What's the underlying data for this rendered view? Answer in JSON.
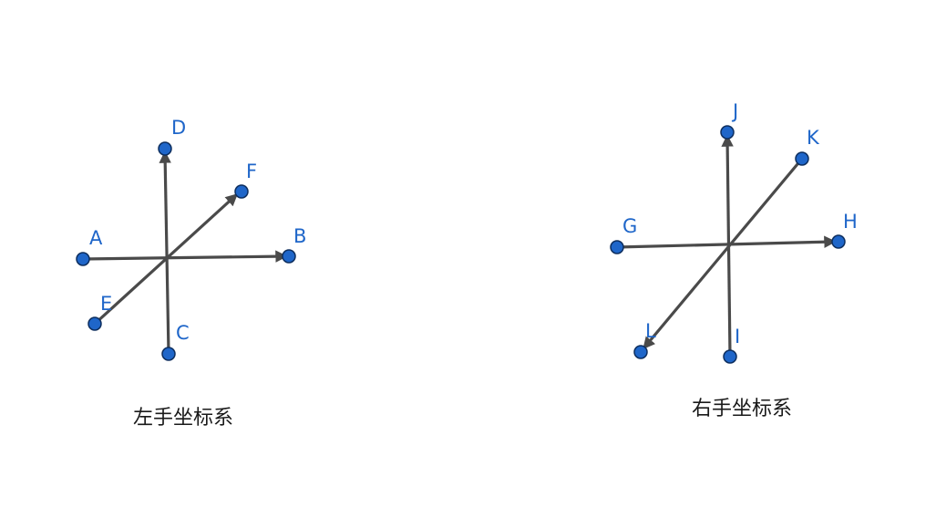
{
  "diagrams": [
    {
      "caption": "左手坐标系",
      "points": [
        "A",
        "B",
        "C",
        "D",
        "E",
        "F"
      ]
    },
    {
      "caption": "右手坐标系",
      "points": [
        "G",
        "H",
        "I",
        "J",
        "K",
        "L"
      ]
    }
  ],
  "colors": {
    "axis": "#4a4a4a",
    "point_fill": "#1f66c9",
    "point_stroke": "#0d2e5e",
    "label": "#1f66c9",
    "caption": "#1a1a1a"
  }
}
